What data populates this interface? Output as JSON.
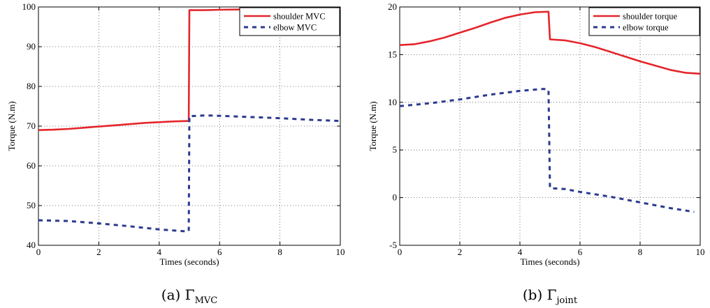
{
  "chart_data": [
    {
      "type": "line",
      "caption_prefix": "(a)",
      "caption_symbol": "Γ",
      "caption_sub": "MVC",
      "xlabel": "Times (seconds)",
      "ylabel": "Torque (N.m)",
      "xlim": [
        0,
        10
      ],
      "ylim": [
        40,
        100
      ],
      "xticks": [
        0,
        2,
        4,
        6,
        8,
        10
      ],
      "yticks": [
        40,
        50,
        60,
        70,
        80,
        90,
        100
      ],
      "grid": true,
      "legend": "top-right",
      "series": [
        {
          "name": "shoulder MVC",
          "color": "#e4252b",
          "style": "solid",
          "x": [
            0,
            0.5,
            1,
            1.5,
            2,
            2.5,
            3,
            3.5,
            4,
            4.5,
            4.98,
            5.0,
            5.5,
            6,
            7,
            8,
            9,
            10
          ],
          "y": [
            69.0,
            69.1,
            69.3,
            69.6,
            69.9,
            70.2,
            70.5,
            70.8,
            71.0,
            71.2,
            71.3,
            99.2,
            99.2,
            99.3,
            99.4,
            99.4,
            99.5,
            99.5
          ]
        },
        {
          "name": "elbow MVC",
          "color": "#2b3a8f",
          "style": "dashed",
          "x": [
            0,
            1,
            2,
            3,
            4,
            4.9,
            4.98,
            5.0,
            5.5,
            6,
            7,
            8,
            9,
            10
          ],
          "y": [
            46.3,
            46.1,
            45.5,
            44.8,
            44.0,
            43.5,
            43.6,
            72.5,
            72.7,
            72.6,
            72.3,
            72.0,
            71.6,
            71.3
          ]
        }
      ]
    },
    {
      "type": "line",
      "caption_prefix": "(b)",
      "caption_symbol": "Γ",
      "caption_sub": "joint",
      "xlabel": "Times (seconds)",
      "ylabel": "Torque (N.m)",
      "xlim": [
        0,
        10
      ],
      "ylim": [
        -5,
        20
      ],
      "xticks": [
        0,
        2,
        4,
        6,
        8,
        10
      ],
      "yticks": [
        -5,
        0,
        5,
        10,
        15,
        20
      ],
      "grid": true,
      "legend": "top-right",
      "series": [
        {
          "name": "shoulder torque",
          "color": "#e4252b",
          "style": "solid",
          "x": [
            0,
            0.5,
            1,
            1.5,
            2,
            2.5,
            3,
            3.5,
            4,
            4.5,
            4.95,
            5.0,
            5.5,
            6,
            6.5,
            7,
            7.5,
            8,
            8.5,
            9,
            9.5,
            10
          ],
          "y": [
            16.0,
            16.1,
            16.4,
            16.8,
            17.3,
            17.8,
            18.35,
            18.85,
            19.2,
            19.45,
            19.5,
            16.6,
            16.5,
            16.2,
            15.8,
            15.3,
            14.8,
            14.3,
            13.85,
            13.4,
            13.1,
            13.0
          ],
          "legend_label": "shoulder torque"
        },
        {
          "name": "elbow torque",
          "color": "#2b3a8f",
          "style": "dashed",
          "x": [
            0,
            1,
            2,
            3,
            4,
            4.8,
            4.95,
            5.0,
            5.5,
            6,
            7,
            8,
            9,
            9.8
          ],
          "y": [
            9.6,
            9.9,
            10.3,
            10.8,
            11.2,
            11.4,
            11.3,
            1.0,
            0.9,
            0.6,
            0.1,
            -0.5,
            -1.1,
            -1.5
          ]
        }
      ]
    }
  ]
}
